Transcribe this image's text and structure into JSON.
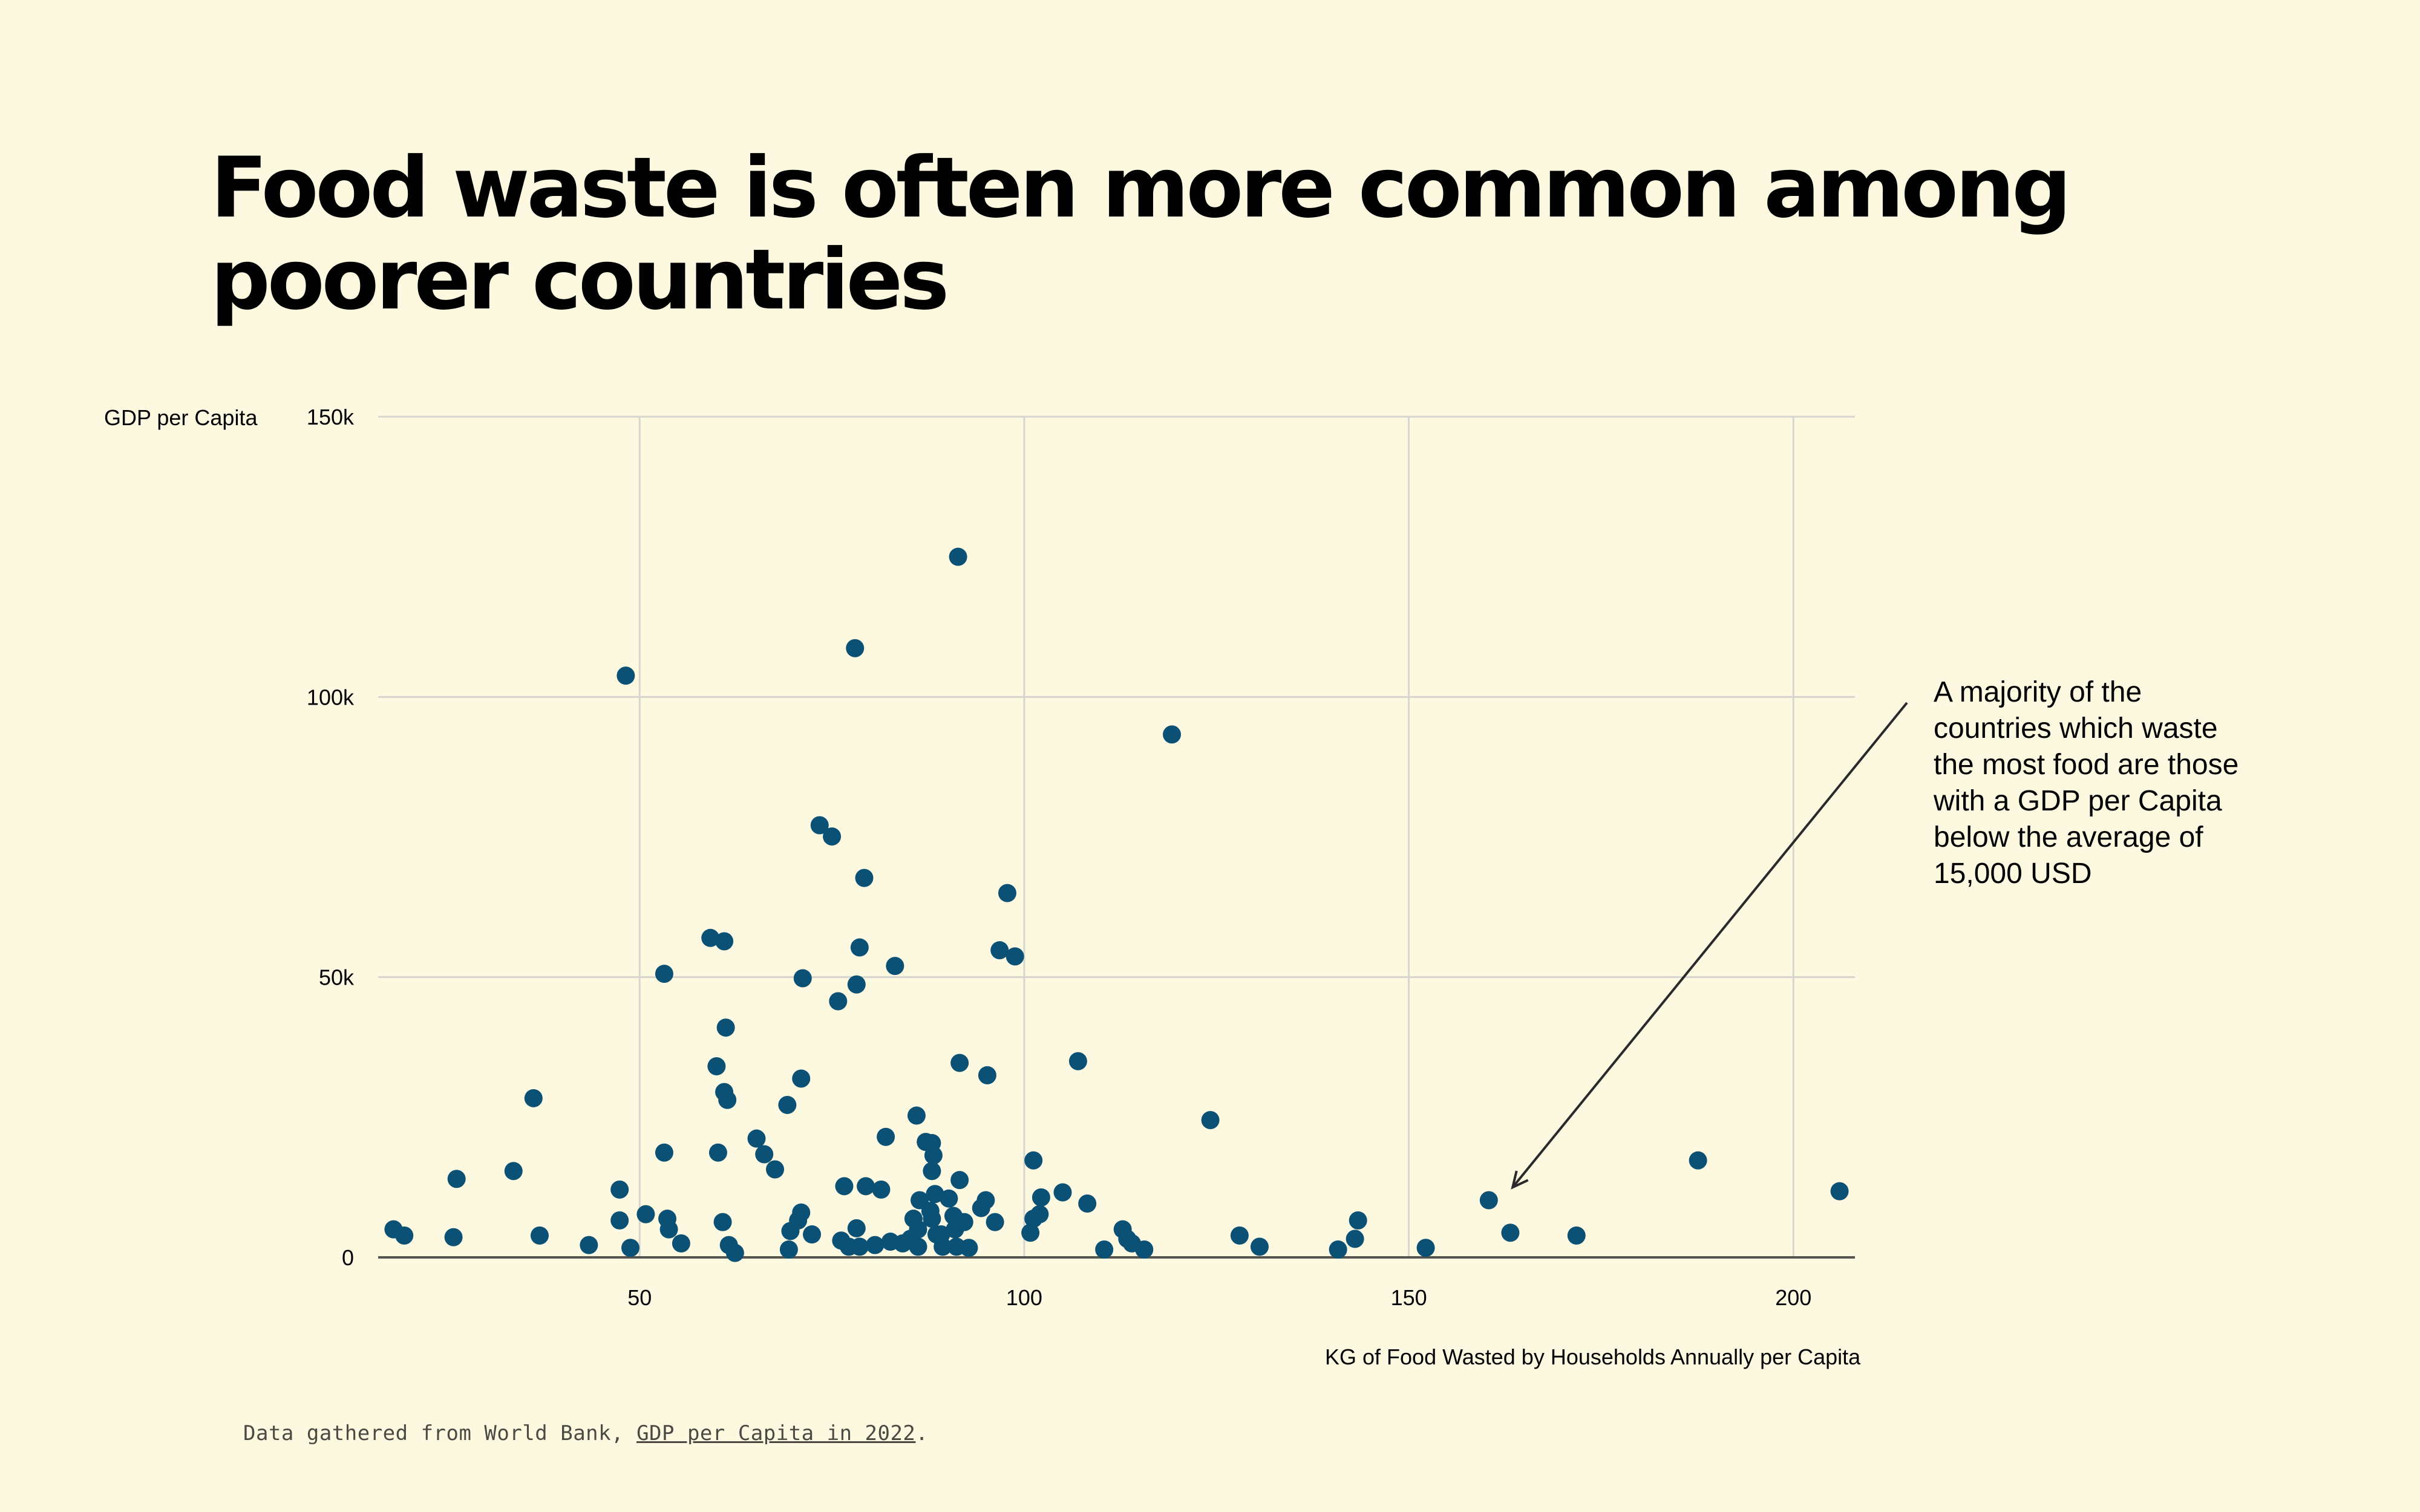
{
  "page": {
    "title": "Food waste is often more common among poorer countries",
    "y_axis_label": "GDP per Capita",
    "x_axis_label": "KG of Food Wasted by Households Annually per Capita",
    "annotation": "A majority of the countries which waste the most food are those with a GDP per Capita below the average of 15,000 USD",
    "footnote_prefix": "Data gathered from World Bank, ",
    "footnote_link": "GDP per Capita in 2022",
    "footnote_suffix": ".",
    "colors": {
      "background": "#fdf9e1",
      "point": "#0b5075",
      "grid": "#d6d6cf",
      "axis": "#55554f",
      "text": "#000000"
    }
  },
  "chart_data": {
    "type": "scatter",
    "title": "Food waste is often more common among poorer countries",
    "xlabel": "KG of Food Wasted by Households Annually per Capita",
    "ylabel": "GDP per Capita",
    "xlim": [
      16,
      208
    ],
    "ylim": [
      0,
      150000
    ],
    "x_ticks": [
      50,
      100,
      150,
      200
    ],
    "x_tick_labels": [
      "50",
      "100",
      "150",
      "200"
    ],
    "y_ticks": [
      0,
      50000,
      100000,
      150000
    ],
    "y_tick_labels": [
      "0",
      "50k",
      "100k",
      "150k"
    ],
    "grid": true,
    "annotation": {
      "text": "A majority of the countries which waste the most food are those with a GDP per Capita below the average of 15,000 USD",
      "arrow_to": [
        163.5,
        12500
      ],
      "placement": "right"
    },
    "points": [
      [
        18,
        5000
      ],
      [
        19.4,
        3900
      ],
      [
        26.2,
        14000
      ],
      [
        25.8,
        3600
      ],
      [
        33.6,
        15400
      ],
      [
        36.2,
        28400
      ],
      [
        37,
        3900
      ],
      [
        43.4,
        2200
      ],
      [
        48.2,
        103800
      ],
      [
        47.4,
        12100
      ],
      [
        47.4,
        6600
      ],
      [
        48.8,
        1700
      ],
      [
        50.8,
        7700
      ],
      [
        53.2,
        50600
      ],
      [
        53.2,
        18700
      ],
      [
        53.6,
        6900
      ],
      [
        53.8,
        5000
      ],
      [
        55.4,
        2500
      ],
      [
        59.2,
        57000
      ],
      [
        61,
        56400
      ],
      [
        60,
        34100
      ],
      [
        60.2,
        18700
      ],
      [
        61.2,
        41000
      ],
      [
        61,
        29500
      ],
      [
        61.4,
        28100
      ],
      [
        60.8,
        6300
      ],
      [
        61.6,
        2200
      ],
      [
        62.4,
        800
      ],
      [
        65.2,
        21200
      ],
      [
        66.2,
        18400
      ],
      [
        67.6,
        15700
      ],
      [
        69.2,
        27200
      ],
      [
        69.6,
        4700
      ],
      [
        69.4,
        1400
      ],
      [
        70.6,
        6600
      ],
      [
        71,
        8000
      ],
      [
        71.2,
        49800
      ],
      [
        71,
        31900
      ],
      [
        72.4,
        4100
      ],
      [
        73.4,
        77100
      ],
      [
        75,
        75100
      ],
      [
        75.8,
        45700
      ],
      [
        76.2,
        3000
      ],
      [
        76.6,
        12700
      ],
      [
        77.2,
        1900
      ],
      [
        78,
        108700
      ],
      [
        78.2,
        48700
      ],
      [
        78.6,
        55300
      ],
      [
        78.2,
        5200
      ],
      [
        78.6,
        1900
      ],
      [
        79.2,
        67700
      ],
      [
        79.4,
        12700
      ],
      [
        80.6,
        2200
      ],
      [
        81.4,
        12100
      ],
      [
        82,
        21500
      ],
      [
        82.6,
        2800
      ],
      [
        83.2,
        52000
      ],
      [
        84.2,
        2500
      ],
      [
        85.2,
        3300
      ],
      [
        86,
        25300
      ],
      [
        85.6,
        6900
      ],
      [
        86.2,
        1900
      ],
      [
        86.4,
        10200
      ],
      [
        86.2,
        5000
      ],
      [
        87.2,
        20600
      ],
      [
        88,
        20400
      ],
      [
        88.2,
        18200
      ],
      [
        88,
        15400
      ],
      [
        87.8,
        8300
      ],
      [
        88.4,
        11300
      ],
      [
        88,
        6900
      ],
      [
        88.6,
        4100
      ],
      [
        89.4,
        1900
      ],
      [
        89.2,
        4100
      ],
      [
        90.2,
        10500
      ],
      [
        90.8,
        7400
      ],
      [
        91,
        5000
      ],
      [
        91.6,
        13800
      ],
      [
        91.2,
        1900
      ],
      [
        92.2,
        6300
      ],
      [
        92.8,
        1700
      ],
      [
        91.4,
        125000
      ],
      [
        91.6,
        34700
      ],
      [
        94.4,
        8800
      ],
      [
        95,
        10200
      ],
      [
        95.2,
        32500
      ],
      [
        96.2,
        6300
      ],
      [
        96.8,
        54800
      ],
      [
        97.8,
        65000
      ],
      [
        98.8,
        53700
      ],
      [
        100.8,
        4400
      ],
      [
        101.2,
        17300
      ],
      [
        101.2,
        6900
      ],
      [
        102,
        7700
      ],
      [
        102.2,
        10700
      ],
      [
        105,
        11600
      ],
      [
        107,
        35000
      ],
      [
        108.2,
        9600
      ],
      [
        110.4,
        1400
      ],
      [
        112.8,
        5000
      ],
      [
        113.4,
        3300
      ],
      [
        114,
        2500
      ],
      [
        115.6,
        1400
      ],
      [
        119.2,
        93300
      ],
      [
        124.2,
        24500
      ],
      [
        128,
        3900
      ],
      [
        130.6,
        1900
      ],
      [
        140.8,
        1400
      ],
      [
        143,
        3300
      ],
      [
        143.4,
        6600
      ],
      [
        152.2,
        1700
      ],
      [
        160.4,
        10200
      ],
      [
        163.2,
        4400
      ],
      [
        171.8,
        3900
      ],
      [
        187.6,
        17300
      ],
      [
        206,
        11800
      ]
    ]
  }
}
